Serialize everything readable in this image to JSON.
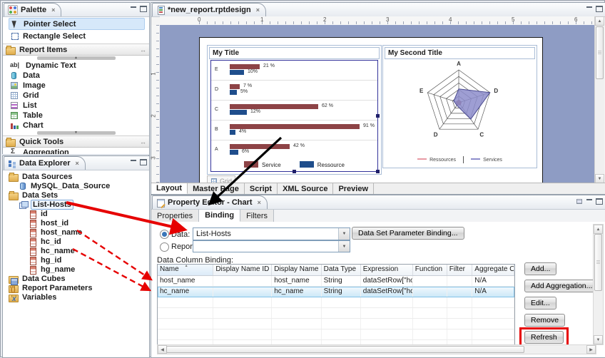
{
  "palette": {
    "title": "Palette",
    "tools": [
      {
        "label": "Pointer Select",
        "icon": "pointer-icon",
        "selected": true
      },
      {
        "label": "Rectangle Select",
        "icon": "rectangle-select-icon",
        "selected": false
      }
    ],
    "sections": [
      {
        "label": "Report Items",
        "items": [
          {
            "label": "Dynamic Text",
            "icon": "dynamic-text-icon"
          },
          {
            "label": "Data",
            "icon": "data-icon"
          },
          {
            "label": "Image",
            "icon": "image-icon"
          },
          {
            "label": "Grid",
            "icon": "grid-icon"
          },
          {
            "label": "List",
            "icon": "list-icon"
          },
          {
            "label": "Table",
            "icon": "table-icon"
          },
          {
            "label": "Chart",
            "icon": "chart-icon"
          }
        ]
      },
      {
        "label": "Quick Tools",
        "items": [
          {
            "label": "Aggregation",
            "icon": "aggregation-icon"
          }
        ]
      }
    ]
  },
  "data_explorer": {
    "title": "Data Explorer",
    "nodes": [
      {
        "depth": 0,
        "icon": "data-sources-icon",
        "folder": true,
        "label": "Data Sources"
      },
      {
        "depth": 1,
        "icon": "data-source-icon",
        "label": "MySQL_Data_Source"
      },
      {
        "depth": 0,
        "icon": "data-sets-icon",
        "folder": true,
        "label": "Data Sets"
      },
      {
        "depth": 1,
        "icon": "data-set-icon",
        "label": "List-Hosts",
        "boxed": true
      },
      {
        "depth": 2,
        "icon": "column-icon",
        "label": "id"
      },
      {
        "depth": 2,
        "icon": "column-icon",
        "label": "host_id"
      },
      {
        "depth": 2,
        "icon": "column-icon",
        "label": "host_name"
      },
      {
        "depth": 2,
        "icon": "column-icon",
        "label": "hc_id"
      },
      {
        "depth": 2,
        "icon": "column-icon",
        "label": "hc_name"
      },
      {
        "depth": 2,
        "icon": "column-icon",
        "label": "hg_id"
      },
      {
        "depth": 2,
        "icon": "column-icon",
        "label": "hg_name"
      },
      {
        "depth": 0,
        "icon": "data-cubes-icon",
        "folder": true,
        "label": "Data Cubes"
      },
      {
        "depth": 0,
        "icon": "report-parameters-icon",
        "folder": true,
        "label": "Report Parameters"
      },
      {
        "depth": 0,
        "icon": "variables-icon",
        "folder": true,
        "label": "Variables"
      }
    ]
  },
  "editor": {
    "tab_title": "*new_report.rptdesign",
    "h_ruler_numbers": [
      "0",
      "1",
      "2",
      "3",
      "4",
      "5",
      "6"
    ],
    "v_ruler_numbers": [
      "1",
      "2",
      "3"
    ],
    "bottom_tabs": [
      {
        "label": "Layout",
        "active": true
      },
      {
        "label": "Master Page",
        "active": false
      },
      {
        "label": "Script",
        "active": false
      },
      {
        "label": "XML Source",
        "active": false
      },
      {
        "label": "Preview",
        "active": false
      }
    ],
    "grid_tag_label": "Grid"
  },
  "chart_data": [
    {
      "type": "bar",
      "orientation": "horizontal",
      "title": "My Title",
      "categories": [
        "E",
        "D",
        "C",
        "B",
        "A"
      ],
      "series": [
        {
          "name": "Service",
          "color": "#8d4346",
          "values": [
            21,
            7,
            62,
            91,
            42
          ],
          "labels": [
            "21 %",
            "7 %",
            "62 %",
            "91 %",
            "42 %"
          ]
        },
        {
          "name": "Ressource",
          "color": "#1f4e8c",
          "values": [
            10,
            5,
            12,
            4,
            6
          ],
          "labels": [
            "10%",
            "5%",
            "12%",
            "4%",
            "6%"
          ]
        }
      ],
      "xlim": [
        0,
        100
      ],
      "legend_position": "bottom"
    },
    {
      "type": "radar",
      "title": "My Second Title",
      "categories": [
        "A",
        "D",
        "C",
        "D",
        "E"
      ],
      "rings": 5,
      "value_range": [
        0,
        100
      ],
      "series": [
        {
          "name": "Ressources",
          "color": "#e89aa4",
          "fill": "#8d4346",
          "values": [
            8,
            8,
            8,
            8,
            8
          ]
        },
        {
          "name": "Services",
          "color": "#8d8dcb",
          "fill": "#8d8dcb",
          "values": [
            42,
            100,
            62,
            10,
            16
          ]
        }
      ],
      "legend_position": "bottom"
    }
  ],
  "property_editor": {
    "title": "Property Editor - Chart",
    "tabs": [
      {
        "label": "Properties",
        "active": false
      },
      {
        "label": "Binding",
        "active": true
      },
      {
        "label": "Filters",
        "active": false
      }
    ],
    "data_radio_label": "Data:",
    "data_value": "List-Hosts",
    "param_binding_button": "Data Set Parameter Binding...",
    "report_item_radio_label": "Report Item:",
    "report_item_value": "",
    "binding_section_label": "Data Column Binding:",
    "table": {
      "columns": [
        "Name",
        "Display Name ID",
        "Display Name",
        "Data Type",
        "Expression",
        "Function",
        "Filter",
        "Aggregate On"
      ],
      "rows": [
        {
          "cells": [
            "host_name",
            "",
            "host_name",
            "String",
            "dataSetRow[\"ho...",
            "",
            "",
            "N/A"
          ],
          "selected": false
        },
        {
          "cells": [
            "hc_name",
            "",
            "hc_name",
            "String",
            "dataSetRow[\"hc...",
            "",
            "",
            "N/A"
          ],
          "selected": true
        }
      ],
      "empty_row_count": 5
    },
    "buttons": [
      {
        "label": "Add...",
        "highlighted": false
      },
      {
        "label": "Add Aggregation...",
        "highlighted": false
      },
      {
        "label": "Edit...",
        "highlighted": false
      },
      {
        "label": "Remove",
        "highlighted": false
      },
      {
        "label": "Refresh",
        "highlighted": true
      }
    ]
  },
  "colors": {
    "canvas_bg": "#8e9cc4",
    "bar_series1": "#8d4346",
    "bar_series2": "#1f4e8c",
    "radar_fill": "#8d8dcb",
    "annotation_red": "#e60000",
    "selection_blue": "#d6e8fa"
  }
}
